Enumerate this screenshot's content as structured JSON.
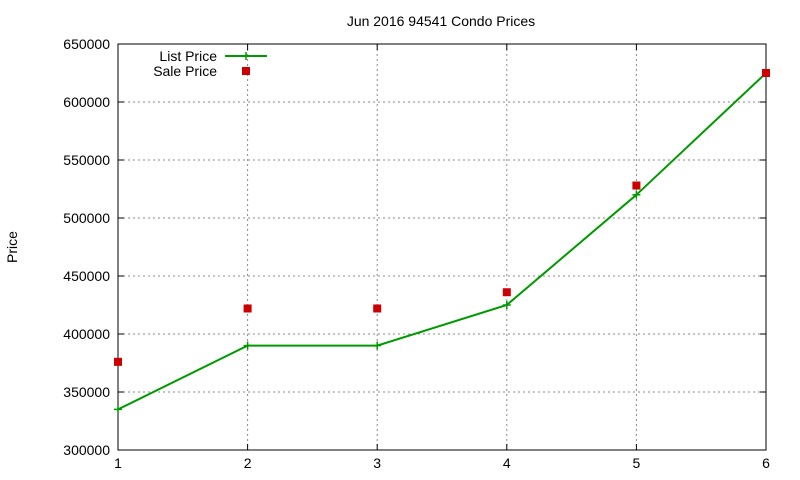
{
  "chart_data": {
    "type": "line",
    "title": "Jun 2016 94541 Condo Prices",
    "xlabel": "",
    "ylabel": "Price",
    "x": [
      1,
      2,
      3,
      4,
      5,
      6
    ],
    "xlim": [
      1,
      6
    ],
    "ylim": [
      300000,
      650000
    ],
    "xticks": [
      1,
      2,
      3,
      4,
      5,
      6
    ],
    "yticks": [
      300000,
      350000,
      400000,
      450000,
      500000,
      550000,
      600000,
      650000
    ],
    "grid": true,
    "legend_position": "top-left",
    "series": [
      {
        "name": "List Price",
        "style": "line-with-plus-markers",
        "color": "#009900",
        "values": [
          335000,
          390000,
          390000,
          425000,
          520000,
          625000
        ]
      },
      {
        "name": "Sale Price",
        "style": "square-markers",
        "color": "#cc0000",
        "values": [
          376000,
          422000,
          422000,
          436000,
          528000,
          625000
        ]
      }
    ]
  }
}
